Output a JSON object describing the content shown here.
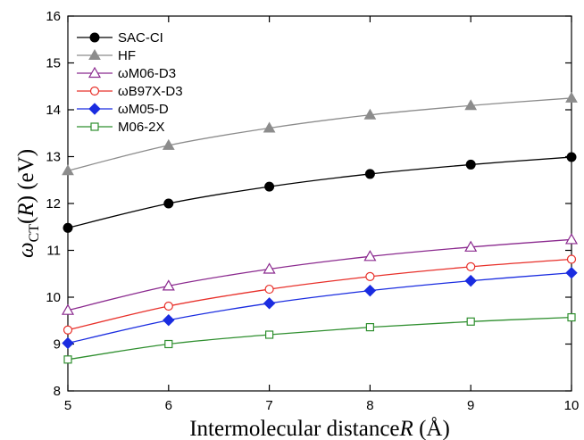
{
  "chart_data": {
    "type": "line",
    "title": "",
    "xlabel_text": "Intermolecular distance",
    "xlabel_var": "R",
    "xlabel_unit": " (Å)",
    "ylabel_symbol": "ω",
    "ylabel_sub": "CT",
    "ylabel_rest": "(",
    "ylabel_var": "R",
    "ylabel_unit": ") (eV)",
    "xlim": [
      5,
      10
    ],
    "ylim": [
      8,
      16
    ],
    "xticks": [
      5,
      6,
      7,
      8,
      9,
      10
    ],
    "yticks": [
      8,
      9,
      10,
      11,
      12,
      13,
      14,
      15,
      16
    ],
    "grid": false,
    "legend_position": "top-left",
    "x": [
      5,
      6,
      7,
      8,
      9,
      10
    ],
    "series": [
      {
        "name": "SAC-CI",
        "color": "#000000",
        "marker": "filled-circle",
        "values": [
          11.48,
          12.0,
          12.36,
          12.63,
          12.83,
          12.99
        ]
      },
      {
        "name": "HF",
        "color": "#8c8c8c",
        "marker": "filled-triangle",
        "values": [
          12.7,
          13.24,
          13.61,
          13.89,
          14.09,
          14.25
        ]
      },
      {
        "name": "ωM06-D3",
        "color": "#8b2a8f",
        "marker": "open-triangle",
        "values": [
          9.72,
          10.24,
          10.6,
          10.87,
          11.07,
          11.23
        ]
      },
      {
        "name": "ωB97X-D3",
        "color": "#e8302a",
        "marker": "open-circle",
        "values": [
          9.3,
          9.81,
          10.17,
          10.44,
          10.65,
          10.81
        ]
      },
      {
        "name": "ωM05-D",
        "color": "#1a2ce0",
        "marker": "filled-diamond",
        "values": [
          9.02,
          9.51,
          9.87,
          10.14,
          10.35,
          10.52
        ]
      },
      {
        "name": "M06-2X",
        "color": "#2f8f2f",
        "marker": "open-square",
        "values": [
          8.67,
          9.0,
          9.2,
          9.36,
          9.48,
          9.57
        ]
      }
    ]
  }
}
